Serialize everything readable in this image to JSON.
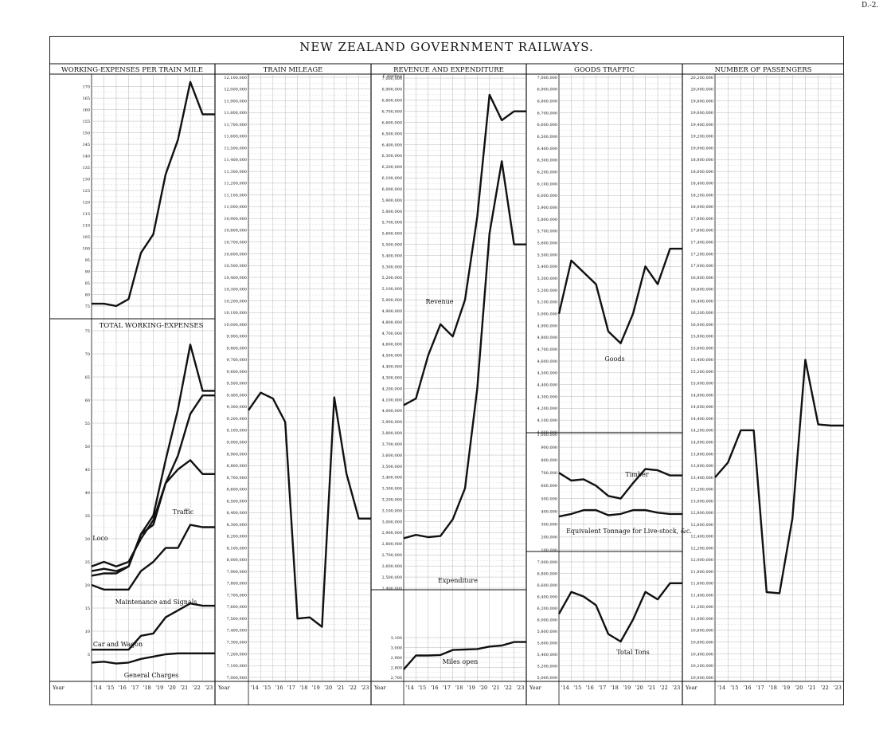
{
  "page_ref": "D.-2.",
  "title": "NEW ZEALAND GOVERNMENT RAILWAYS.",
  "year_label": "Year",
  "colors": {
    "ink": "#111111",
    "grid": "#9a9a9a",
    "paper": "#ffffff"
  },
  "chart_data": [
    {
      "id": "p1a",
      "type": "line",
      "title": "WORKING-EXPENSES PER TRAIN MILE",
      "x": [
        "'14",
        "'15",
        "'16",
        "'17",
        "'18",
        "'19",
        "'20",
        "'21",
        "'22",
        "'23"
      ],
      "ylim": [
        75,
        174
      ],
      "ticks": [
        75,
        80,
        85,
        90,
        95,
        100,
        105,
        110,
        115,
        120,
        125,
        130,
        135,
        140,
        145,
        150,
        155,
        160,
        165,
        170
      ],
      "series": [
        {
          "values": [
            76,
            76,
            75,
            78,
            98,
            106,
            132,
            147,
            172,
            158
          ]
        }
      ]
    },
    {
      "id": "p1b",
      "type": "line",
      "title": "TOTAL WORKING-EXPENSES",
      "x": [
        "'14",
        "'15",
        "'16",
        "'17",
        "'18",
        "'19",
        "'20",
        "'21",
        "'22",
        "'23"
      ],
      "ylim": [
        0,
        75
      ],
      "ticks": [
        5,
        10,
        15,
        20,
        25,
        30,
        35,
        40,
        45,
        50,
        55,
        60,
        65,
        70,
        75
      ],
      "series": [
        {
          "values": [
            23,
            23.5,
            23,
            24,
            31,
            35,
            47,
            58,
            72,
            62
          ]
        },
        {
          "name": "Traffic",
          "values": [
            22,
            22.5,
            22.5,
            24,
            31,
            33,
            42,
            45,
            47,
            44
          ]
        },
        {
          "name": "Loco",
          "values": [
            24,
            25,
            24,
            25,
            30,
            34,
            42,
            48,
            57,
            61
          ]
        },
        {
          "name": "Maintenance and Signals",
          "values": [
            20,
            19,
            19,
            19,
            23,
            25,
            28,
            28,
            33,
            32.5
          ]
        },
        {
          "name": "Car and Wagon",
          "values": [
            6,
            6,
            6,
            6,
            9,
            9.5,
            13,
            14.5,
            16,
            15.5
          ]
        },
        {
          "name": "General Charges",
          "values": [
            3.2,
            3.4,
            3,
            3.2,
            4,
            4.5,
            5,
            5.2,
            5.2,
            5.2
          ]
        }
      ]
    },
    {
      "id": "p2",
      "type": "line",
      "title": "TRAIN MILEAGE",
      "x": [
        "'14",
        "'15",
        "'16",
        "'17",
        "'18",
        "'19",
        "'20",
        "'21",
        "'22",
        "'23"
      ],
      "ylim": [
        7000000,
        12100000
      ],
      "ticks": [
        7000000,
        7100000,
        7200000,
        7300000,
        7400000,
        7500000,
        7600000,
        7700000,
        7800000,
        7900000,
        8000000,
        8100000,
        8200000,
        8300000,
        8400000,
        8500000,
        8600000,
        8700000,
        8800000,
        8900000,
        9000000,
        9100000,
        9200000,
        9300000,
        9400000,
        9500000,
        9600000,
        9700000,
        9800000,
        9900000,
        10000000,
        10100000,
        10200000,
        10300000,
        10400000,
        10500000,
        10600000,
        10700000,
        10800000,
        10900000,
        11000000,
        11100000,
        11200000,
        11300000,
        11400000,
        11500000,
        11600000,
        11700000,
        11800000,
        11900000,
        12000000,
        12100000
      ],
      "series": [
        {
          "values": [
            9270000,
            9420000,
            9370000,
            9170000,
            7500000,
            7510000,
            7430000,
            9380000,
            8730000,
            8350000
          ]
        }
      ]
    },
    {
      "id": "p3a",
      "type": "line",
      "title": "REVENUE AND EXPENDITURE",
      "unit_label": "£ sterling",
      "x": [
        "'14",
        "'15",
        "'16",
        "'17",
        "'18",
        "'19",
        "'20",
        "'21",
        "'22",
        "'23"
      ],
      "ylim": [
        2400000,
        7000000
      ],
      "ticks": [
        2400000,
        2500000,
        2600000,
        2700000,
        2800000,
        2900000,
        3000000,
        3100000,
        3200000,
        3300000,
        3400000,
        3500000,
        3600000,
        3700000,
        3800000,
        3900000,
        4000000,
        4100000,
        4200000,
        4300000,
        4400000,
        4500000,
        4600000,
        4700000,
        4800000,
        4900000,
        5000000,
        5100000,
        5200000,
        5300000,
        5400000,
        5500000,
        5600000,
        5700000,
        5800000,
        5900000,
        6000000,
        6100000,
        6200000,
        6300000,
        6400000,
        6500000,
        6600000,
        6700000,
        6800000,
        6900000,
        7000000
      ],
      "series": [
        {
          "name": "Revenue",
          "values": [
            4050000,
            4110000,
            4500000,
            4780000,
            4670000,
            5000000,
            5750000,
            6850000,
            6620000,
            6700000
          ]
        },
        {
          "name": "Expenditure",
          "values": [
            2850000,
            2880000,
            2860000,
            2870000,
            3020000,
            3300000,
            4200000,
            5600000,
            6250000,
            5500000
          ]
        }
      ]
    },
    {
      "id": "p3b",
      "type": "line",
      "title": "",
      "x": [
        "'14",
        "'15",
        "'16",
        "'17",
        "'18",
        "'19",
        "'20",
        "'21",
        "'22",
        "'23"
      ],
      "ylim": [
        2700,
        3100
      ],
      "ticks": [
        2700,
        2800,
        2900,
        3000,
        3100
      ],
      "series": [
        {
          "name": "Miles open",
          "values": [
            2780,
            2920,
            2920,
            2925,
            2975,
            2980,
            2985,
            3010,
            3020,
            3055
          ]
        }
      ]
    },
    {
      "id": "p4a",
      "type": "line",
      "title": "GOODS TRAFFIC",
      "x": [
        "'14",
        "'15",
        "'16",
        "'17",
        "'18",
        "'19",
        "'20",
        "'21",
        "'22",
        "'23"
      ],
      "ylim": [
        4000000,
        7000000
      ],
      "ticks": [
        4000000,
        4100000,
        4200000,
        4300000,
        4400000,
        4500000,
        4600000,
        4700000,
        4800000,
        4900000,
        5000000,
        5100000,
        5200000,
        5300000,
        5400000,
        5500000,
        5600000,
        5700000,
        5800000,
        5900000,
        6000000,
        6100000,
        6200000,
        6300000,
        6400000,
        6500000,
        6600000,
        6700000,
        6800000,
        6900000,
        7000000
      ],
      "series": [
        {
          "name": "Goods",
          "values": [
            5000000,
            5450000,
            5350000,
            5250000,
            4850000,
            4750000,
            5000000,
            5400000,
            5250000,
            5550000
          ]
        }
      ]
    },
    {
      "id": "p4b",
      "type": "line",
      "title": "",
      "x": [
        "'14",
        "'15",
        "'16",
        "'17",
        "'18",
        "'19",
        "'20",
        "'21",
        "'22",
        "'23"
      ],
      "ylim": [
        100000,
        1000000
      ],
      "ticks": [
        100000,
        200000,
        300000,
        400000,
        500000,
        600000,
        700000,
        800000,
        900000,
        1000000
      ],
      "series": [
        {
          "name": "Timber",
          "values": [
            700000,
            640000,
            650000,
            600000,
            520000,
            500000,
            620000,
            730000,
            720000,
            680000
          ]
        },
        {
          "name": "Equivalent Tonnage for Live-stock, &c.",
          "values": [
            360000,
            380000,
            410000,
            410000,
            370000,
            380000,
            410000,
            410000,
            390000,
            380000
          ]
        }
      ]
    },
    {
      "id": "p4c",
      "type": "line",
      "title": "",
      "x": [
        "'14",
        "'15",
        "'16",
        "'17",
        "'18",
        "'19",
        "'20",
        "'21",
        "'22",
        "'23"
      ],
      "ylim": [
        5000000,
        7000000
      ],
      "ticks": [
        5000000,
        5200000,
        5400000,
        5600000,
        5800000,
        6000000,
        6200000,
        6400000,
        6600000,
        6800000,
        7000000
      ],
      "series": [
        {
          "name": "Total Tons",
          "values": [
            6100000,
            6480000,
            6400000,
            6250000,
            5750000,
            5620000,
            6000000,
            6480000,
            6350000,
            6630000
          ]
        }
      ]
    },
    {
      "id": "p5",
      "type": "line",
      "title": "NUMBER OF PASSENGERS",
      "x": [
        "'14",
        "'15",
        "'16",
        "'17",
        "'18",
        "'19",
        "'20",
        "'21",
        "'22",
        "'23"
      ],
      "ylim": [
        10000000,
        20200000
      ],
      "ticks": [
        10000000,
        10200000,
        10400000,
        10600000,
        10800000,
        11000000,
        11200000,
        11400000,
        11600000,
        11800000,
        12000000,
        12200000,
        12400000,
        12600000,
        12800000,
        13000000,
        13200000,
        13400000,
        13600000,
        13800000,
        14000000,
        14200000,
        14400000,
        14600000,
        14800000,
        15000000,
        15200000,
        15400000,
        15600000,
        15800000,
        16000000,
        16200000,
        16400000,
        16600000,
        16800000,
        17000000,
        17200000,
        17400000,
        17600000,
        17800000,
        18000000,
        18200000,
        18400000,
        18600000,
        18800000,
        19000000,
        19200000,
        19400000,
        19600000,
        19800000,
        20000000,
        20200000
      ],
      "series": [
        {
          "values": [
            13400000,
            13650000,
            14200000,
            14200000,
            11450000,
            11430000,
            12700000,
            15400000,
            14300000,
            14280000
          ]
        }
      ]
    }
  ]
}
